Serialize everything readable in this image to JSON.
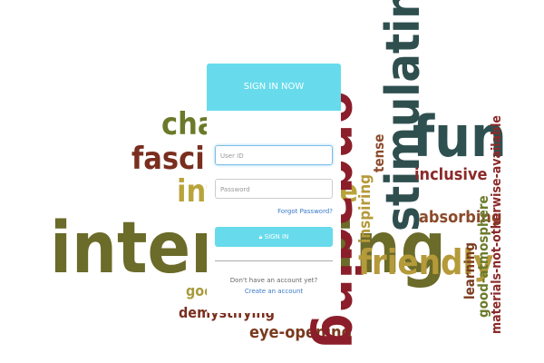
{
  "background_words": [
    "challenging",
    "fascinating",
    "informative",
    "interesting",
    "good",
    "demystifying",
    "eye-opening",
    "engaging",
    "stimulating",
    "fun",
    "tense",
    "inclusive",
    "inspiring",
    "absorbing",
    "friendly",
    "learning",
    "good-atmosphere",
    "materials-not-otherwise-available"
  ],
  "form": {
    "title": "SIGN IN NOW",
    "user_id_placeholder": "User ID",
    "password_placeholder": "Password",
    "forgot_password": "Forgot Password?",
    "button": "SIGN IN",
    "no_account": "Don't have an account yet?",
    "create_account": "Create an account"
  }
}
